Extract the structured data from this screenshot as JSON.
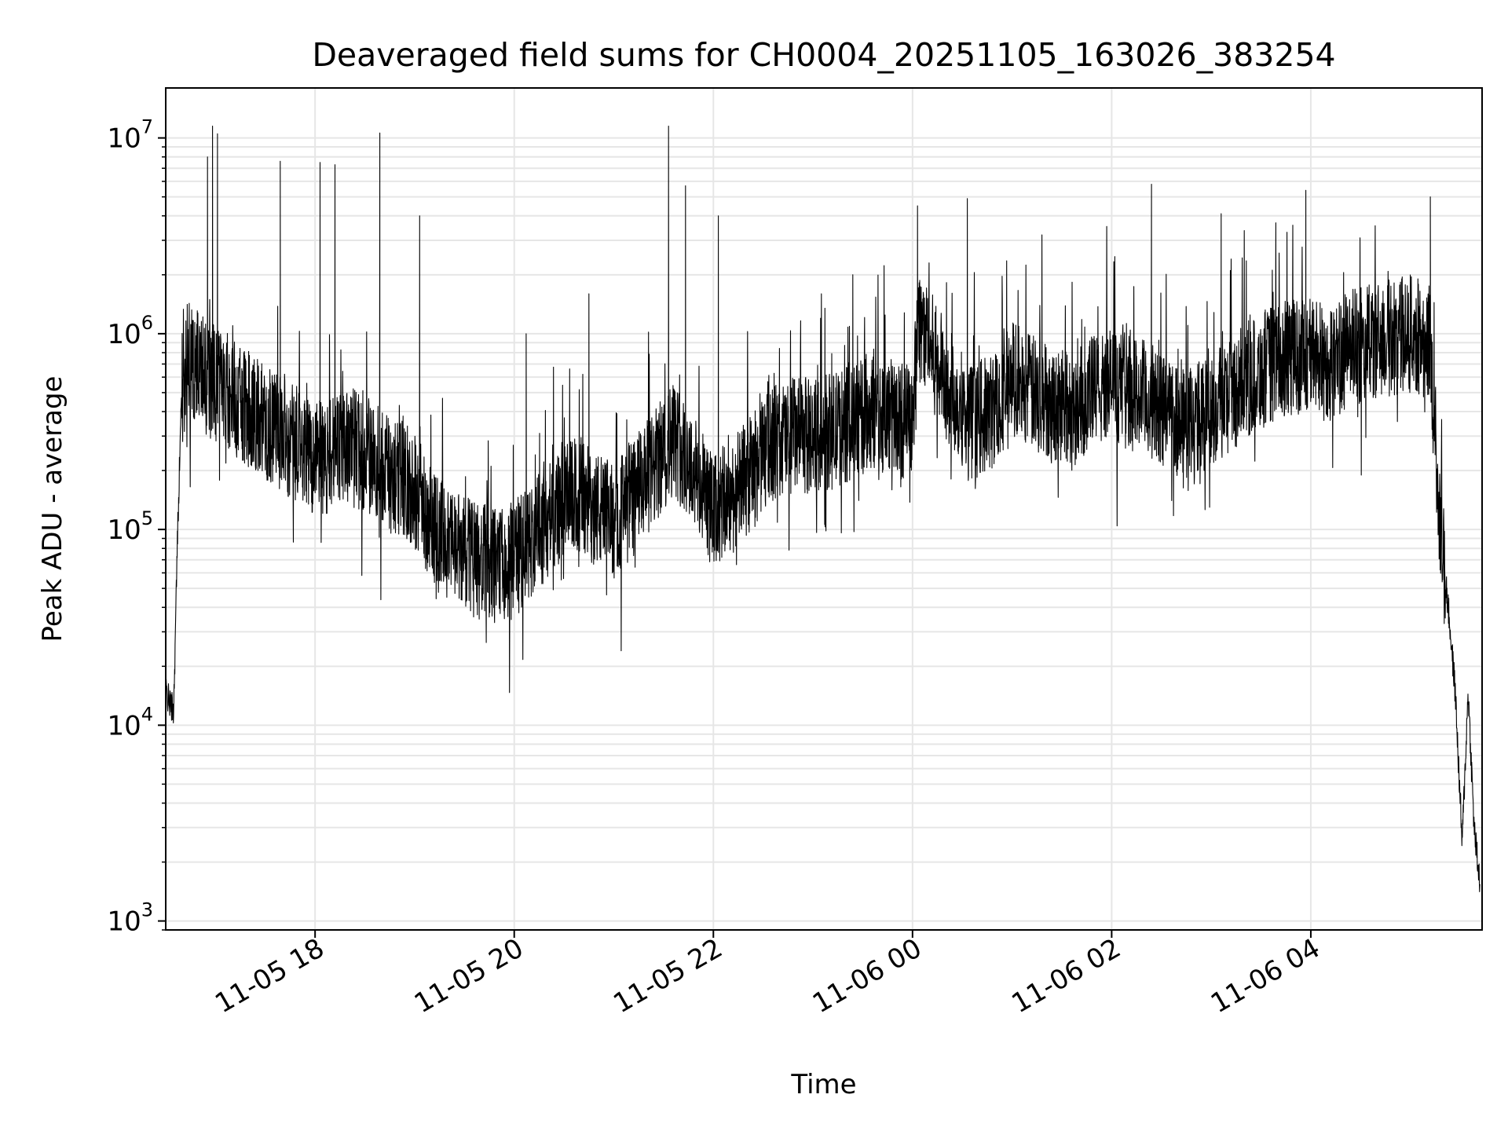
{
  "chart_data": {
    "type": "line",
    "title": "Deaveraged field sums for CH0004_20251105_163026_383254",
    "xlabel": "Time",
    "ylabel": "Peak ADU - average",
    "yscale": "log",
    "ylim": [
      900,
      18000000
    ],
    "xlim_hours": [
      16.5,
      29.72
    ],
    "grid": true,
    "line_color": "#000000",
    "grid_color": "#e6e6e6",
    "x_ticks": [
      {
        "label": "11-05 18",
        "hour": 18
      },
      {
        "label": "11-05 20",
        "hour": 20
      },
      {
        "label": "11-05 22",
        "hour": 22
      },
      {
        "label": "11-06 00",
        "hour": 24
      },
      {
        "label": "11-06 02",
        "hour": 26
      },
      {
        "label": "11-06 04",
        "hour": 28
      }
    ],
    "y_ticks": [
      {
        "base": "10",
        "exp": "3",
        "value": 1000
      },
      {
        "base": "10",
        "exp": "4",
        "value": 10000
      },
      {
        "base": "10",
        "exp": "5",
        "value": 100000
      },
      {
        "base": "10",
        "exp": "6",
        "value": 1000000
      },
      {
        "base": "10",
        "exp": "7",
        "value": 10000000
      }
    ],
    "series": [
      {
        "name": "Peak ADU - average",
        "x_hours": [
          16.5,
          16.54,
          16.58,
          16.62,
          16.66,
          16.72,
          16.8,
          16.9,
          17.0,
          17.15,
          17.3,
          17.5,
          17.7,
          17.9,
          18.1,
          18.3,
          18.5,
          18.7,
          18.9,
          19.0,
          19.2,
          19.4,
          19.6,
          19.8,
          20.0,
          20.2,
          20.4,
          20.6,
          20.8,
          21.0,
          21.2,
          21.4,
          21.6,
          21.8,
          22.0,
          22.2,
          22.4,
          22.6,
          22.8,
          23.0,
          23.2,
          23.4,
          23.6,
          23.8,
          24.0,
          24.05,
          24.2,
          24.4,
          24.6,
          24.8,
          25.0,
          25.2,
          25.4,
          25.6,
          25.8,
          26.0,
          26.2,
          26.4,
          26.6,
          26.8,
          27.0,
          27.2,
          27.4,
          27.6,
          27.8,
          28.0,
          28.2,
          28.4,
          28.6,
          28.8,
          29.0,
          29.2,
          29.3,
          29.38,
          29.45,
          29.52,
          29.58,
          29.64,
          29.7
        ],
        "values": [
          15000,
          13000,
          12000,
          100000,
          500000,
          800000,
          700000,
          600000,
          550000,
          500000,
          420000,
          350000,
          300000,
          250000,
          230000,
          260000,
          250000,
          200000,
          180000,
          160000,
          100000,
          80000,
          70000,
          65000,
          70000,
          90000,
          120000,
          150000,
          130000,
          110000,
          150000,
          200000,
          300000,
          200000,
          120000,
          150000,
          200000,
          280000,
          300000,
          300000,
          320000,
          350000,
          400000,
          380000,
          350000,
          1200000,
          800000,
          500000,
          350000,
          400000,
          600000,
          500000,
          450000,
          400000,
          500000,
          550000,
          500000,
          450000,
          400000,
          350000,
          400000,
          500000,
          600000,
          700000,
          750000,
          800000,
          700000,
          850000,
          900000,
          950000,
          1000000,
          900000,
          100000,
          40000,
          15000,
          2500,
          15000,
          3000,
          1500
        ],
        "spikes": [
          {
            "hour": 16.92,
            "value": 8000000
          },
          {
            "hour": 16.97,
            "value": 11500000
          },
          {
            "hour": 17.02,
            "value": 10500000
          },
          {
            "hour": 17.65,
            "value": 7600000
          },
          {
            "hour": 18.05,
            "value": 7500000
          },
          {
            "hour": 18.2,
            "value": 7300000
          },
          {
            "hour": 18.65,
            "value": 10600000
          },
          {
            "hour": 19.05,
            "value": 4000000
          },
          {
            "hour": 20.12,
            "value": 1000000
          },
          {
            "hour": 20.75,
            "value": 1600000
          },
          {
            "hour": 21.55,
            "value": 11500000
          },
          {
            "hour": 21.72,
            "value": 5700000
          },
          {
            "hour": 22.05,
            "value": 4000000
          },
          {
            "hour": 23.4,
            "value": 2000000
          },
          {
            "hour": 24.05,
            "value": 4500000
          },
          {
            "hour": 24.55,
            "value": 4900000
          },
          {
            "hour": 25.3,
            "value": 3200000
          },
          {
            "hour": 26.4,
            "value": 5800000
          },
          {
            "hour": 27.1,
            "value": 4100000
          },
          {
            "hour": 27.95,
            "value": 5400000
          },
          {
            "hour": 29.2,
            "value": 5000000
          }
        ]
      }
    ]
  }
}
